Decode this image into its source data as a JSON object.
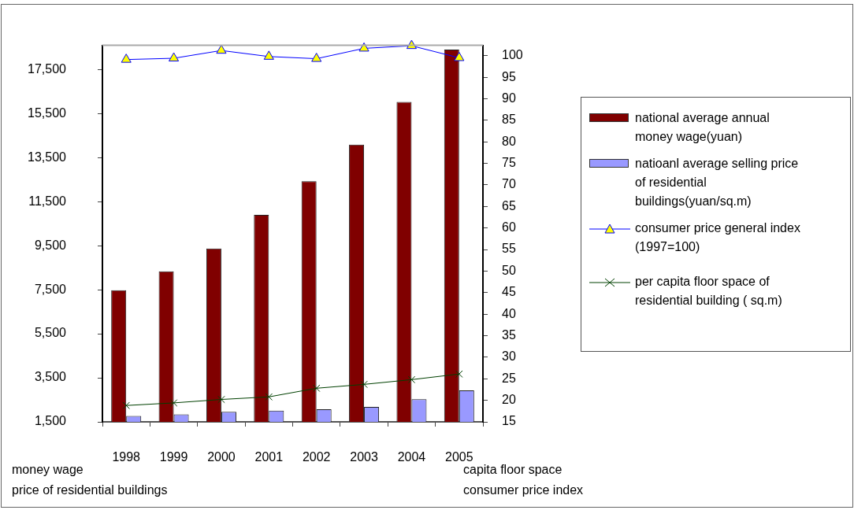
{
  "chart_data": {
    "type": "bar",
    "categories": [
      "1998",
      "1999",
      "2000",
      "2001",
      "2002",
      "2003",
      "2004",
      "2005"
    ],
    "series": [
      {
        "name": "national average annual money wage(yuan)",
        "color": "#800000",
        "values": [
          7480,
          8340,
          9370,
          10900,
          12430,
          14090,
          16030,
          18410
        ]
      },
      {
        "name": "natioanl average selling price of residential buildings(yuan/sq.m)",
        "color": "#9999ff",
        "values": [
          1770,
          1840,
          1960,
          2010,
          2070,
          2180,
          2530,
          2930
        ]
      },
      {
        "name": "consumer price general index (1997=100)",
        "type": "line",
        "axis": "y2",
        "marker": "triangle",
        "color": "#0000ff",
        "values": [
          99.1,
          99.4,
          101.2,
          99.8,
          99.3,
          101.7,
          102.3,
          99.5
        ]
      },
      {
        "name": "per capita floor space of residential building ( sq.m)",
        "type": "line",
        "axis": "y2",
        "marker": "cross",
        "color": "#004000",
        "values": [
          18.8,
          19.4,
          20.2,
          20.8,
          22.8,
          23.7,
          24.8,
          26.1
        ]
      }
    ],
    "ylim": [
      1500,
      18600
    ],
    "yticks": [
      {
        "value": 1500,
        "label": "1,500"
      },
      {
        "value": 3500,
        "label": "3,500"
      },
      {
        "value": 5500,
        "label": "5,500"
      },
      {
        "value": 7500,
        "label": "7,500"
      },
      {
        "value": 9500,
        "label": "9,500"
      },
      {
        "value": 11500,
        "label": "11,500"
      },
      {
        "value": 13500,
        "label": "13,500"
      },
      {
        "value": 15500,
        "label": "15,500"
      },
      {
        "value": 17500,
        "label": "17,500"
      }
    ],
    "y2lim": [
      15,
      102.4
    ],
    "y2ticks": [
      15,
      20,
      25,
      30,
      35,
      40,
      45,
      50,
      55,
      60,
      65,
      70,
      75,
      80,
      85,
      90,
      95,
      100
    ],
    "ylabel": "money wage\nprice of residential buildings",
    "y2label": "capita floor space\nconsumer price index",
    "grid": false,
    "legend": "right",
    "line_style": "solid"
  }
}
